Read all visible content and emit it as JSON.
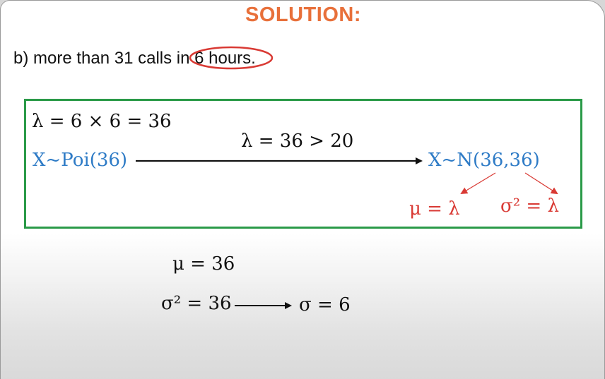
{
  "title": "SOLUTION:",
  "problem": {
    "prefix": "b) more than 31 calls in ",
    "circled": "6 hours."
  },
  "box": {
    "line1": "λ = 6 × 6 = 36",
    "condition": "λ = 36 > 20",
    "left_dist": "X~Poi(36)",
    "right_dist": "X~N(36,36)",
    "mu_eq": "μ = λ",
    "sigma_eq": "σ² = λ"
  },
  "results": {
    "mu": "μ = 36",
    "sigma2": "σ² = 36",
    "sigma": "σ = 6"
  },
  "colors": {
    "accent": "#e8703a",
    "blue": "#2e7bc6",
    "red": "#d93a34",
    "box_border": "#2a9a48"
  }
}
